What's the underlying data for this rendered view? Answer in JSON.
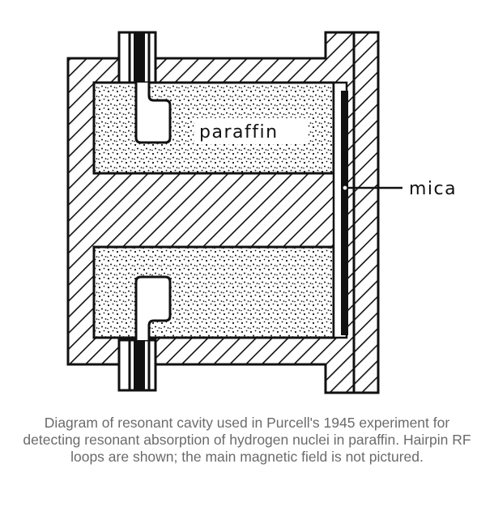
{
  "labels": {
    "paraffin": "paraffin",
    "mica": "mica"
  },
  "caption": "Diagram of resonant cavity used in Purcell's 1945 experiment for detecting resonant absorption of hydrogen nuclei in paraffin. Hairpin RF loops are shown; the main magnetic field is not pictured.",
  "colors": {
    "ink": "#111111",
    "caption": "#6b6b6b"
  }
}
